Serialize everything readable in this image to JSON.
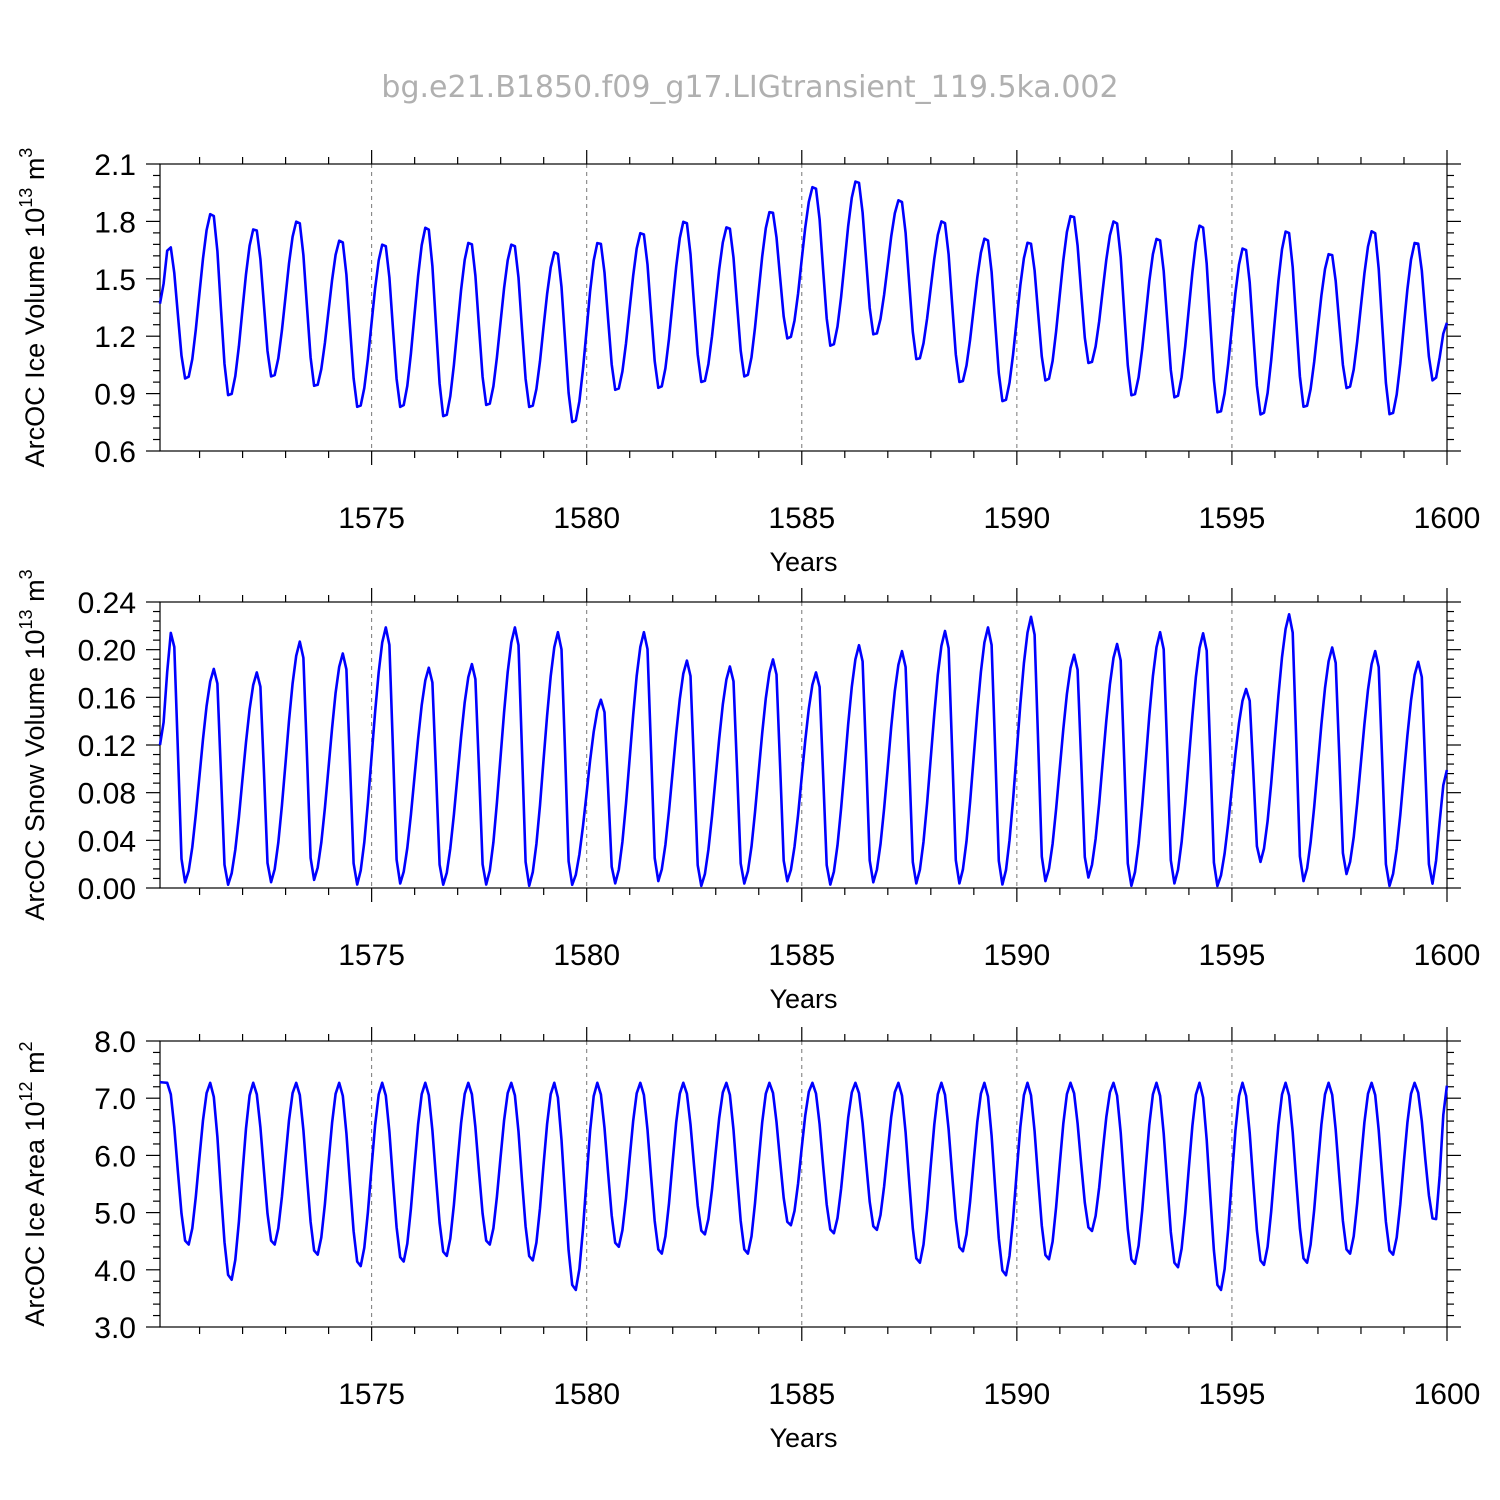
{
  "figure": {
    "title": "bg.e21.B1850.f09_g17.LIGtransient_119.5ka.002"
  },
  "colors": {
    "series": "#0000ff",
    "title": "#b0b0b0",
    "grid": "#777777"
  },
  "chart_data": [
    {
      "type": "line",
      "ylabel": "ArcOC Ice Volume 10",
      "ylabel_exp": "13",
      "ylabel_unit": " m",
      "ylabel_unit_exp": "3",
      "xlabel": "Years",
      "xlim": [
        1570.08,
        1600.0
      ],
      "ylim": [
        0.6,
        2.1
      ],
      "xticks": [
        "1575",
        "1580",
        "1585",
        "1590",
        "1595",
        "1600"
      ],
      "yticks": [
        "0.6",
        "0.9",
        "1.2",
        "1.5",
        "1.8",
        "2.1"
      ],
      "grid": "x dashed",
      "seasonal": {
        "max_month": 3.5,
        "min_month": 8.3
      },
      "annual_extrema": [
        {
          "year": 1570,
          "max": 1.68,
          "min": 0.97
        },
        {
          "year": 1571,
          "max": 1.85,
          "min": 0.88
        },
        {
          "year": 1572,
          "max": 1.77,
          "min": 0.98
        },
        {
          "year": 1573,
          "max": 1.81,
          "min": 0.93
        },
        {
          "year": 1574,
          "max": 1.71,
          "min": 0.82
        },
        {
          "year": 1575,
          "max": 1.69,
          "min": 0.82
        },
        {
          "year": 1576,
          "max": 1.78,
          "min": 0.77
        },
        {
          "year": 1577,
          "max": 1.7,
          "min": 0.83
        },
        {
          "year": 1578,
          "max": 1.69,
          "min": 0.82
        },
        {
          "year": 1579,
          "max": 1.65,
          "min": 0.74
        },
        {
          "year": 1580,
          "max": 1.7,
          "min": 0.91
        },
        {
          "year": 1581,
          "max": 1.75,
          "min": 0.92
        },
        {
          "year": 1582,
          "max": 1.81,
          "min": 0.95
        },
        {
          "year": 1583,
          "max": 1.78,
          "min": 0.98
        },
        {
          "year": 1584,
          "max": 1.86,
          "min": 1.18
        },
        {
          "year": 1585,
          "max": 1.99,
          "min": 1.14
        },
        {
          "year": 1586,
          "max": 2.02,
          "min": 1.2
        },
        {
          "year": 1587,
          "max": 1.92,
          "min": 1.07
        },
        {
          "year": 1588,
          "max": 1.81,
          "min": 0.95
        },
        {
          "year": 1589,
          "max": 1.72,
          "min": 0.85
        },
        {
          "year": 1590,
          "max": 1.7,
          "min": 0.96
        },
        {
          "year": 1591,
          "max": 1.84,
          "min": 1.05
        },
        {
          "year": 1592,
          "max": 1.81,
          "min": 0.88
        },
        {
          "year": 1593,
          "max": 1.72,
          "min": 0.87
        },
        {
          "year": 1594,
          "max": 1.79,
          "min": 0.79
        },
        {
          "year": 1595,
          "max": 1.67,
          "min": 0.78
        },
        {
          "year": 1596,
          "max": 1.76,
          "min": 0.82
        },
        {
          "year": 1597,
          "max": 1.64,
          "min": 0.92
        },
        {
          "year": 1598,
          "max": 1.76,
          "min": 0.78
        },
        {
          "year": 1599,
          "max": 1.7,
          "min": 0.96
        }
      ],
      "start_value": 1.37,
      "end_value": 1.27
    },
    {
      "type": "line",
      "ylabel": "ArcOC Snow Volume 10",
      "ylabel_exp": "13",
      "ylabel_unit": " m",
      "ylabel_unit_exp": "3",
      "xlabel": "Years",
      "xlim": [
        1570.08,
        1600.0
      ],
      "ylim": [
        0.0,
        0.24
      ],
      "xticks": [
        "1575",
        "1580",
        "1585",
        "1590",
        "1595",
        "1600"
      ],
      "yticks": [
        "0.00",
        "0.04",
        "0.08",
        "0.12",
        "0.16",
        "0.20",
        "0.24"
      ],
      "grid": "x dashed",
      "seasonal": {
        "max_month": 4.4,
        "min_month": 7.6
      },
      "annual_extrema": [
        {
          "year": 1570,
          "max": 0.218,
          "min": 0.004
        },
        {
          "year": 1571,
          "max": 0.185,
          "min": 0.002
        },
        {
          "year": 1572,
          "max": 0.182,
          "min": 0.004
        },
        {
          "year": 1573,
          "max": 0.208,
          "min": 0.006
        },
        {
          "year": 1574,
          "max": 0.198,
          "min": 0.002
        },
        {
          "year": 1575,
          "max": 0.22,
          "min": 0.003
        },
        {
          "year": 1576,
          "max": 0.186,
          "min": 0.002
        },
        {
          "year": 1577,
          "max": 0.189,
          "min": 0.002
        },
        {
          "year": 1578,
          "max": 0.22,
          "min": 0.001
        },
        {
          "year": 1579,
          "max": 0.216,
          "min": 0.002
        },
        {
          "year": 1580,
          "max": 0.159,
          "min": 0.003
        },
        {
          "year": 1581,
          "max": 0.216,
          "min": 0.005
        },
        {
          "year": 1582,
          "max": 0.192,
          "min": 0.001
        },
        {
          "year": 1583,
          "max": 0.187,
          "min": 0.003
        },
        {
          "year": 1584,
          "max": 0.193,
          "min": 0.005
        },
        {
          "year": 1585,
          "max": 0.182,
          "min": 0.002
        },
        {
          "year": 1586,
          "max": 0.205,
          "min": 0.004
        },
        {
          "year": 1587,
          "max": 0.2,
          "min": 0.003
        },
        {
          "year": 1588,
          "max": 0.217,
          "min": 0.003
        },
        {
          "year": 1589,
          "max": 0.22,
          "min": 0.002
        },
        {
          "year": 1590,
          "max": 0.229,
          "min": 0.005
        },
        {
          "year": 1591,
          "max": 0.197,
          "min": 0.008
        },
        {
          "year": 1592,
          "max": 0.206,
          "min": 0.001
        },
        {
          "year": 1593,
          "max": 0.216,
          "min": 0.003
        },
        {
          "year": 1594,
          "max": 0.215,
          "min": 0.001
        },
        {
          "year": 1595,
          "max": 0.168,
          "min": 0.021
        },
        {
          "year": 1596,
          "max": 0.231,
          "min": 0.005
        },
        {
          "year": 1597,
          "max": 0.203,
          "min": 0.011
        },
        {
          "year": 1598,
          "max": 0.2,
          "min": 0.001
        },
        {
          "year": 1599,
          "max": 0.191,
          "min": 0.002
        }
      ],
      "start_value": 0.12,
      "end_value": 0.099
    },
    {
      "type": "line",
      "ylabel": "ArcOC Ice Area 10",
      "ylabel_exp": "12",
      "ylabel_unit": " m",
      "ylabel_unit_exp": "2",
      "xlabel": "Years",
      "xlim": [
        1570.08,
        1600.0
      ],
      "ylim": [
        3.0,
        8.0
      ],
      "xticks": [
        "1575",
        "1580",
        "1585",
        "1590",
        "1595",
        "1600"
      ],
      "yticks": [
        "3.0",
        "4.0",
        "5.0",
        "6.0",
        "7.0",
        "8.0"
      ],
      "grid": "x dashed",
      "seasonal": {
        "max_month": 3.0,
        "min_month": 8.6
      },
      "annual_extrema": [
        {
          "year": 1570,
          "max": 7.27,
          "min": 4.42
        },
        {
          "year": 1571,
          "max": 7.27,
          "min": 3.8
        },
        {
          "year": 1572,
          "max": 7.27,
          "min": 4.42
        },
        {
          "year": 1573,
          "max": 7.27,
          "min": 4.24
        },
        {
          "year": 1574,
          "max": 7.27,
          "min": 4.04
        },
        {
          "year": 1575,
          "max": 7.27,
          "min": 4.12
        },
        {
          "year": 1576,
          "max": 7.27,
          "min": 4.22
        },
        {
          "year": 1577,
          "max": 7.27,
          "min": 4.42
        },
        {
          "year": 1578,
          "max": 7.27,
          "min": 4.14
        },
        {
          "year": 1579,
          "max": 7.27,
          "min": 3.62
        },
        {
          "year": 1580,
          "max": 7.27,
          "min": 4.38
        },
        {
          "year": 1581,
          "max": 7.27,
          "min": 4.26
        },
        {
          "year": 1582,
          "max": 7.27,
          "min": 4.6
        },
        {
          "year": 1583,
          "max": 7.27,
          "min": 4.26
        },
        {
          "year": 1584,
          "max": 7.27,
          "min": 4.76
        },
        {
          "year": 1585,
          "max": 7.27,
          "min": 4.62
        },
        {
          "year": 1586,
          "max": 7.27,
          "min": 4.68
        },
        {
          "year": 1587,
          "max": 7.27,
          "min": 4.1
        },
        {
          "year": 1588,
          "max": 7.27,
          "min": 4.3
        },
        {
          "year": 1589,
          "max": 7.27,
          "min": 3.88
        },
        {
          "year": 1590,
          "max": 7.27,
          "min": 4.16
        },
        {
          "year": 1591,
          "max": 7.27,
          "min": 4.66
        },
        {
          "year": 1592,
          "max": 7.27,
          "min": 4.08
        },
        {
          "year": 1593,
          "max": 7.27,
          "min": 4.02
        },
        {
          "year": 1594,
          "max": 7.27,
          "min": 3.62
        },
        {
          "year": 1595,
          "max": 7.27,
          "min": 4.06
        },
        {
          "year": 1596,
          "max": 7.27,
          "min": 4.1
        },
        {
          "year": 1597,
          "max": 7.27,
          "min": 4.26
        },
        {
          "year": 1598,
          "max": 7.27,
          "min": 4.24
        },
        {
          "year": 1599,
          "max": 7.27,
          "min": 4.82
        }
      ],
      "start_value": 7.28,
      "end_value": 7.22
    }
  ]
}
